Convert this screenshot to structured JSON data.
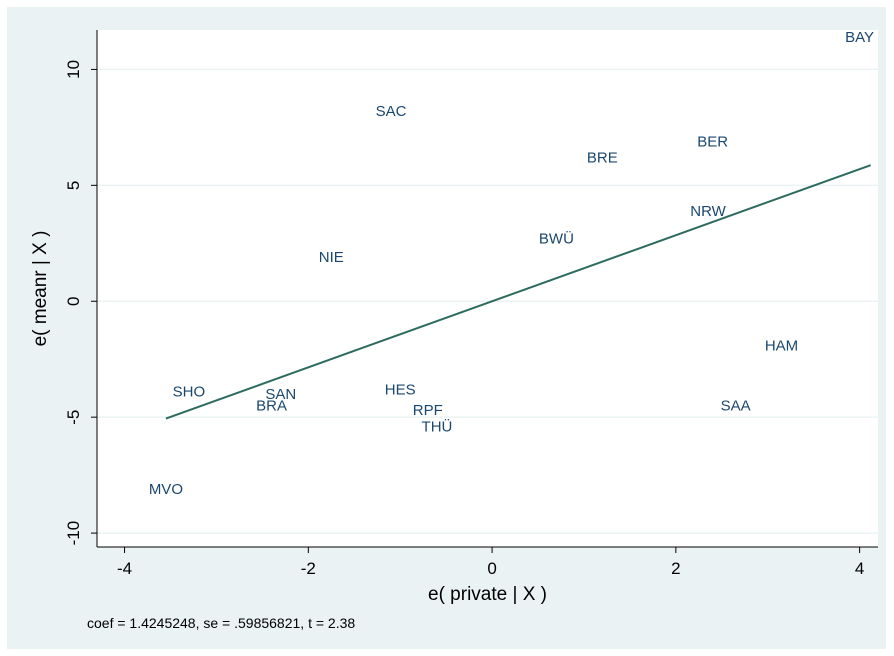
{
  "chart_data": {
    "type": "scatter",
    "xlabel": "e( private | X )",
    "ylabel": "e( meanr | X )",
    "note": "coef = 1.4245248, se = .59856821, t = 2.38",
    "xlim": [
      -4.3,
      4.2
    ],
    "ylim": [
      -10.6,
      11.7
    ],
    "x_ticks": [
      -4,
      -2,
      0,
      2,
      4
    ],
    "x_tick_labels": [
      "-4",
      "-2",
      "0",
      "2",
      "4"
    ],
    "y_ticks": [
      -10,
      -5,
      0,
      5,
      10
    ],
    "y_tick_labels": [
      "-10",
      "-5",
      "0",
      "5",
      "10"
    ],
    "grid": "horizontal",
    "legend": "none",
    "colors": {
      "marker_label": "#1a476f",
      "fit_line": "#2d6b5e",
      "background": "#eaf2f3",
      "plot_area": "#ffffff"
    },
    "points": [
      {
        "label": "BAY",
        "x": 4.0,
        "y": 11.4
      },
      {
        "label": "SAC",
        "x": -1.1,
        "y": 8.2
      },
      {
        "label": "BER",
        "x": 2.4,
        "y": 6.9
      },
      {
        "label": "BRE",
        "x": 1.2,
        "y": 6.2
      },
      {
        "label": "NRW",
        "x": 2.35,
        "y": 3.9
      },
      {
        "label": "BWÜ",
        "x": 0.7,
        "y": 2.7
      },
      {
        "label": "NIE",
        "x": -1.75,
        "y": 1.9
      },
      {
        "label": "HAM",
        "x": 3.15,
        "y": -1.9
      },
      {
        "label": "SHO",
        "x": -3.3,
        "y": -3.9
      },
      {
        "label": "HES",
        "x": -1.0,
        "y": -3.8
      },
      {
        "label": "SAN",
        "x": -2.3,
        "y": -4.0
      },
      {
        "label": "BRA",
        "x": -2.4,
        "y": -4.5
      },
      {
        "label": "SAA",
        "x": 2.65,
        "y": -4.5
      },
      {
        "label": "RPF",
        "x": -0.7,
        "y": -4.7
      },
      {
        "label": "THÜ",
        "x": -0.6,
        "y": -5.4
      },
      {
        "label": "MVO",
        "x": -3.55,
        "y": -8.1
      }
    ],
    "fit_line": {
      "x": [
        -3.55,
        4.12
      ],
      "y": [
        -5.06,
        5.87
      ]
    }
  }
}
